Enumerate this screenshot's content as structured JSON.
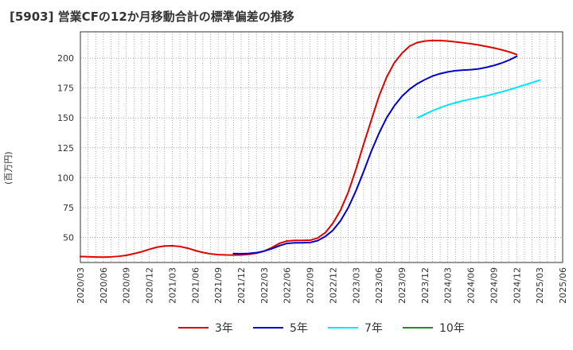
{
  "title": "[5903]  営業CFの12か月移動合計の標準偏差の推移",
  "chart_data": {
    "type": "line",
    "title": "[5903]  営業CFの12か月移動合計の標準偏差の推移",
    "xlabel": "",
    "ylabel": "(百万円)",
    "ylim": [
      29,
      222
    ],
    "yticks": [
      50,
      75,
      100,
      125,
      150,
      175,
      200
    ],
    "x_ticks": [
      "2020/03",
      "2020/06",
      "2020/09",
      "2020/12",
      "2021/03",
      "2021/06",
      "2021/09",
      "2021/12",
      "2022/03",
      "2022/06",
      "2022/09",
      "2022/12",
      "2023/03",
      "2023/06",
      "2023/09",
      "2023/12",
      "2024/03",
      "2024/06",
      "2024/09",
      "2024/12",
      "2025/03",
      "2025/06"
    ],
    "grid": true,
    "legend_position": "bottom",
    "series": [
      {
        "name": "3年",
        "color": "#e00000",
        "points": [
          [
            "2020/03",
            34
          ],
          [
            "2020/04",
            33.8
          ],
          [
            "2020/05",
            33.6
          ],
          [
            "2020/06",
            33.5
          ],
          [
            "2020/07",
            33.7
          ],
          [
            "2020/08",
            34.2
          ],
          [
            "2020/09",
            35
          ],
          [
            "2020/10",
            36.4
          ],
          [
            "2020/11",
            38
          ],
          [
            "2020/12",
            40
          ],
          [
            "2021/01",
            41.8
          ],
          [
            "2021/02",
            42.8
          ],
          [
            "2021/03",
            43
          ],
          [
            "2021/04",
            42.4
          ],
          [
            "2021/05",
            41
          ],
          [
            "2021/06",
            39
          ],
          [
            "2021/07",
            37.4
          ],
          [
            "2021/08",
            36.2
          ],
          [
            "2021/09",
            35.6
          ],
          [
            "2021/10",
            35.3
          ],
          [
            "2021/11",
            35.2
          ],
          [
            "2021/12",
            35.3
          ],
          [
            "2022/01",
            35.8
          ],
          [
            "2022/02",
            36.8
          ],
          [
            "2022/03",
            38.5
          ],
          [
            "2022/04",
            41.5
          ],
          [
            "2022/05",
            45
          ],
          [
            "2022/06",
            47
          ],
          [
            "2022/07",
            47.5
          ],
          [
            "2022/08",
            47.5
          ],
          [
            "2022/09",
            47.6
          ],
          [
            "2022/10",
            49.5
          ],
          [
            "2022/11",
            54
          ],
          [
            "2022/12",
            62
          ],
          [
            "2023/01",
            73
          ],
          [
            "2023/02",
            88
          ],
          [
            "2023/03",
            107
          ],
          [
            "2023/04",
            128
          ],
          [
            "2023/05",
            148
          ],
          [
            "2023/06",
            168
          ],
          [
            "2023/07",
            184
          ],
          [
            "2023/08",
            196
          ],
          [
            "2023/09",
            204
          ],
          [
            "2023/10",
            210
          ],
          [
            "2023/11",
            213
          ],
          [
            "2023/12",
            214.3
          ],
          [
            "2024/01",
            214.8
          ],
          [
            "2024/02",
            214.7
          ],
          [
            "2024/03",
            214.3
          ],
          [
            "2024/04",
            213.6
          ],
          [
            "2024/05",
            212.8
          ],
          [
            "2024/06",
            212
          ],
          [
            "2024/07",
            211
          ],
          [
            "2024/08",
            209.8
          ],
          [
            "2024/09",
            208.5
          ],
          [
            "2024/10",
            207
          ],
          [
            "2024/11",
            205.2
          ],
          [
            "2024/12",
            203
          ]
        ]
      },
      {
        "name": "5年",
        "color": "#0000cc",
        "points": [
          [
            "2021/11",
            36.5
          ],
          [
            "2021/12",
            36.3
          ],
          [
            "2022/01",
            36.6
          ],
          [
            "2022/02",
            37.2
          ],
          [
            "2022/03",
            38.5
          ],
          [
            "2022/04",
            40.5
          ],
          [
            "2022/05",
            43
          ],
          [
            "2022/06",
            45
          ],
          [
            "2022/07",
            45.5
          ],
          [
            "2022/08",
            45.5
          ],
          [
            "2022/09",
            45.7
          ],
          [
            "2022/10",
            47.3
          ],
          [
            "2022/11",
            50.8
          ],
          [
            "2022/12",
            56
          ],
          [
            "2023/01",
            64
          ],
          [
            "2023/02",
            75
          ],
          [
            "2023/03",
            89
          ],
          [
            "2023/04",
            105
          ],
          [
            "2023/05",
            122
          ],
          [
            "2023/06",
            137
          ],
          [
            "2023/07",
            150
          ],
          [
            "2023/08",
            160
          ],
          [
            "2023/09",
            168
          ],
          [
            "2023/10",
            174
          ],
          [
            "2023/11",
            178.5
          ],
          [
            "2023/12",
            182
          ],
          [
            "2024/01",
            185
          ],
          [
            "2024/02",
            187
          ],
          [
            "2024/03",
            188.5
          ],
          [
            "2024/04",
            189.5
          ],
          [
            "2024/05",
            190
          ],
          [
            "2024/06",
            190.3
          ],
          [
            "2024/07",
            191
          ],
          [
            "2024/08",
            192.2
          ],
          [
            "2024/09",
            193.8
          ],
          [
            "2024/10",
            195.8
          ],
          [
            "2024/11",
            198.3
          ],
          [
            "2024/12",
            201.5
          ]
        ]
      },
      {
        "name": "7年",
        "color": "#00e5ff",
        "points": [
          [
            "2023/11",
            150
          ],
          [
            "2023/12",
            153
          ],
          [
            "2024/01",
            156
          ],
          [
            "2024/02",
            158.5
          ],
          [
            "2024/03",
            160.8
          ],
          [
            "2024/04",
            162.7
          ],
          [
            "2024/05",
            164.3
          ],
          [
            "2024/06",
            165.7
          ],
          [
            "2024/07",
            167
          ],
          [
            "2024/08",
            168.4
          ],
          [
            "2024/09",
            170
          ],
          [
            "2024/10",
            171.7
          ],
          [
            "2024/11",
            173.5
          ],
          [
            "2024/12",
            175.5
          ],
          [
            "2025/01",
            177.5
          ],
          [
            "2025/02",
            179.5
          ],
          [
            "2025/03",
            181.5
          ]
        ]
      },
      {
        "name": "10年",
        "color": "#228b22",
        "points": []
      }
    ]
  }
}
